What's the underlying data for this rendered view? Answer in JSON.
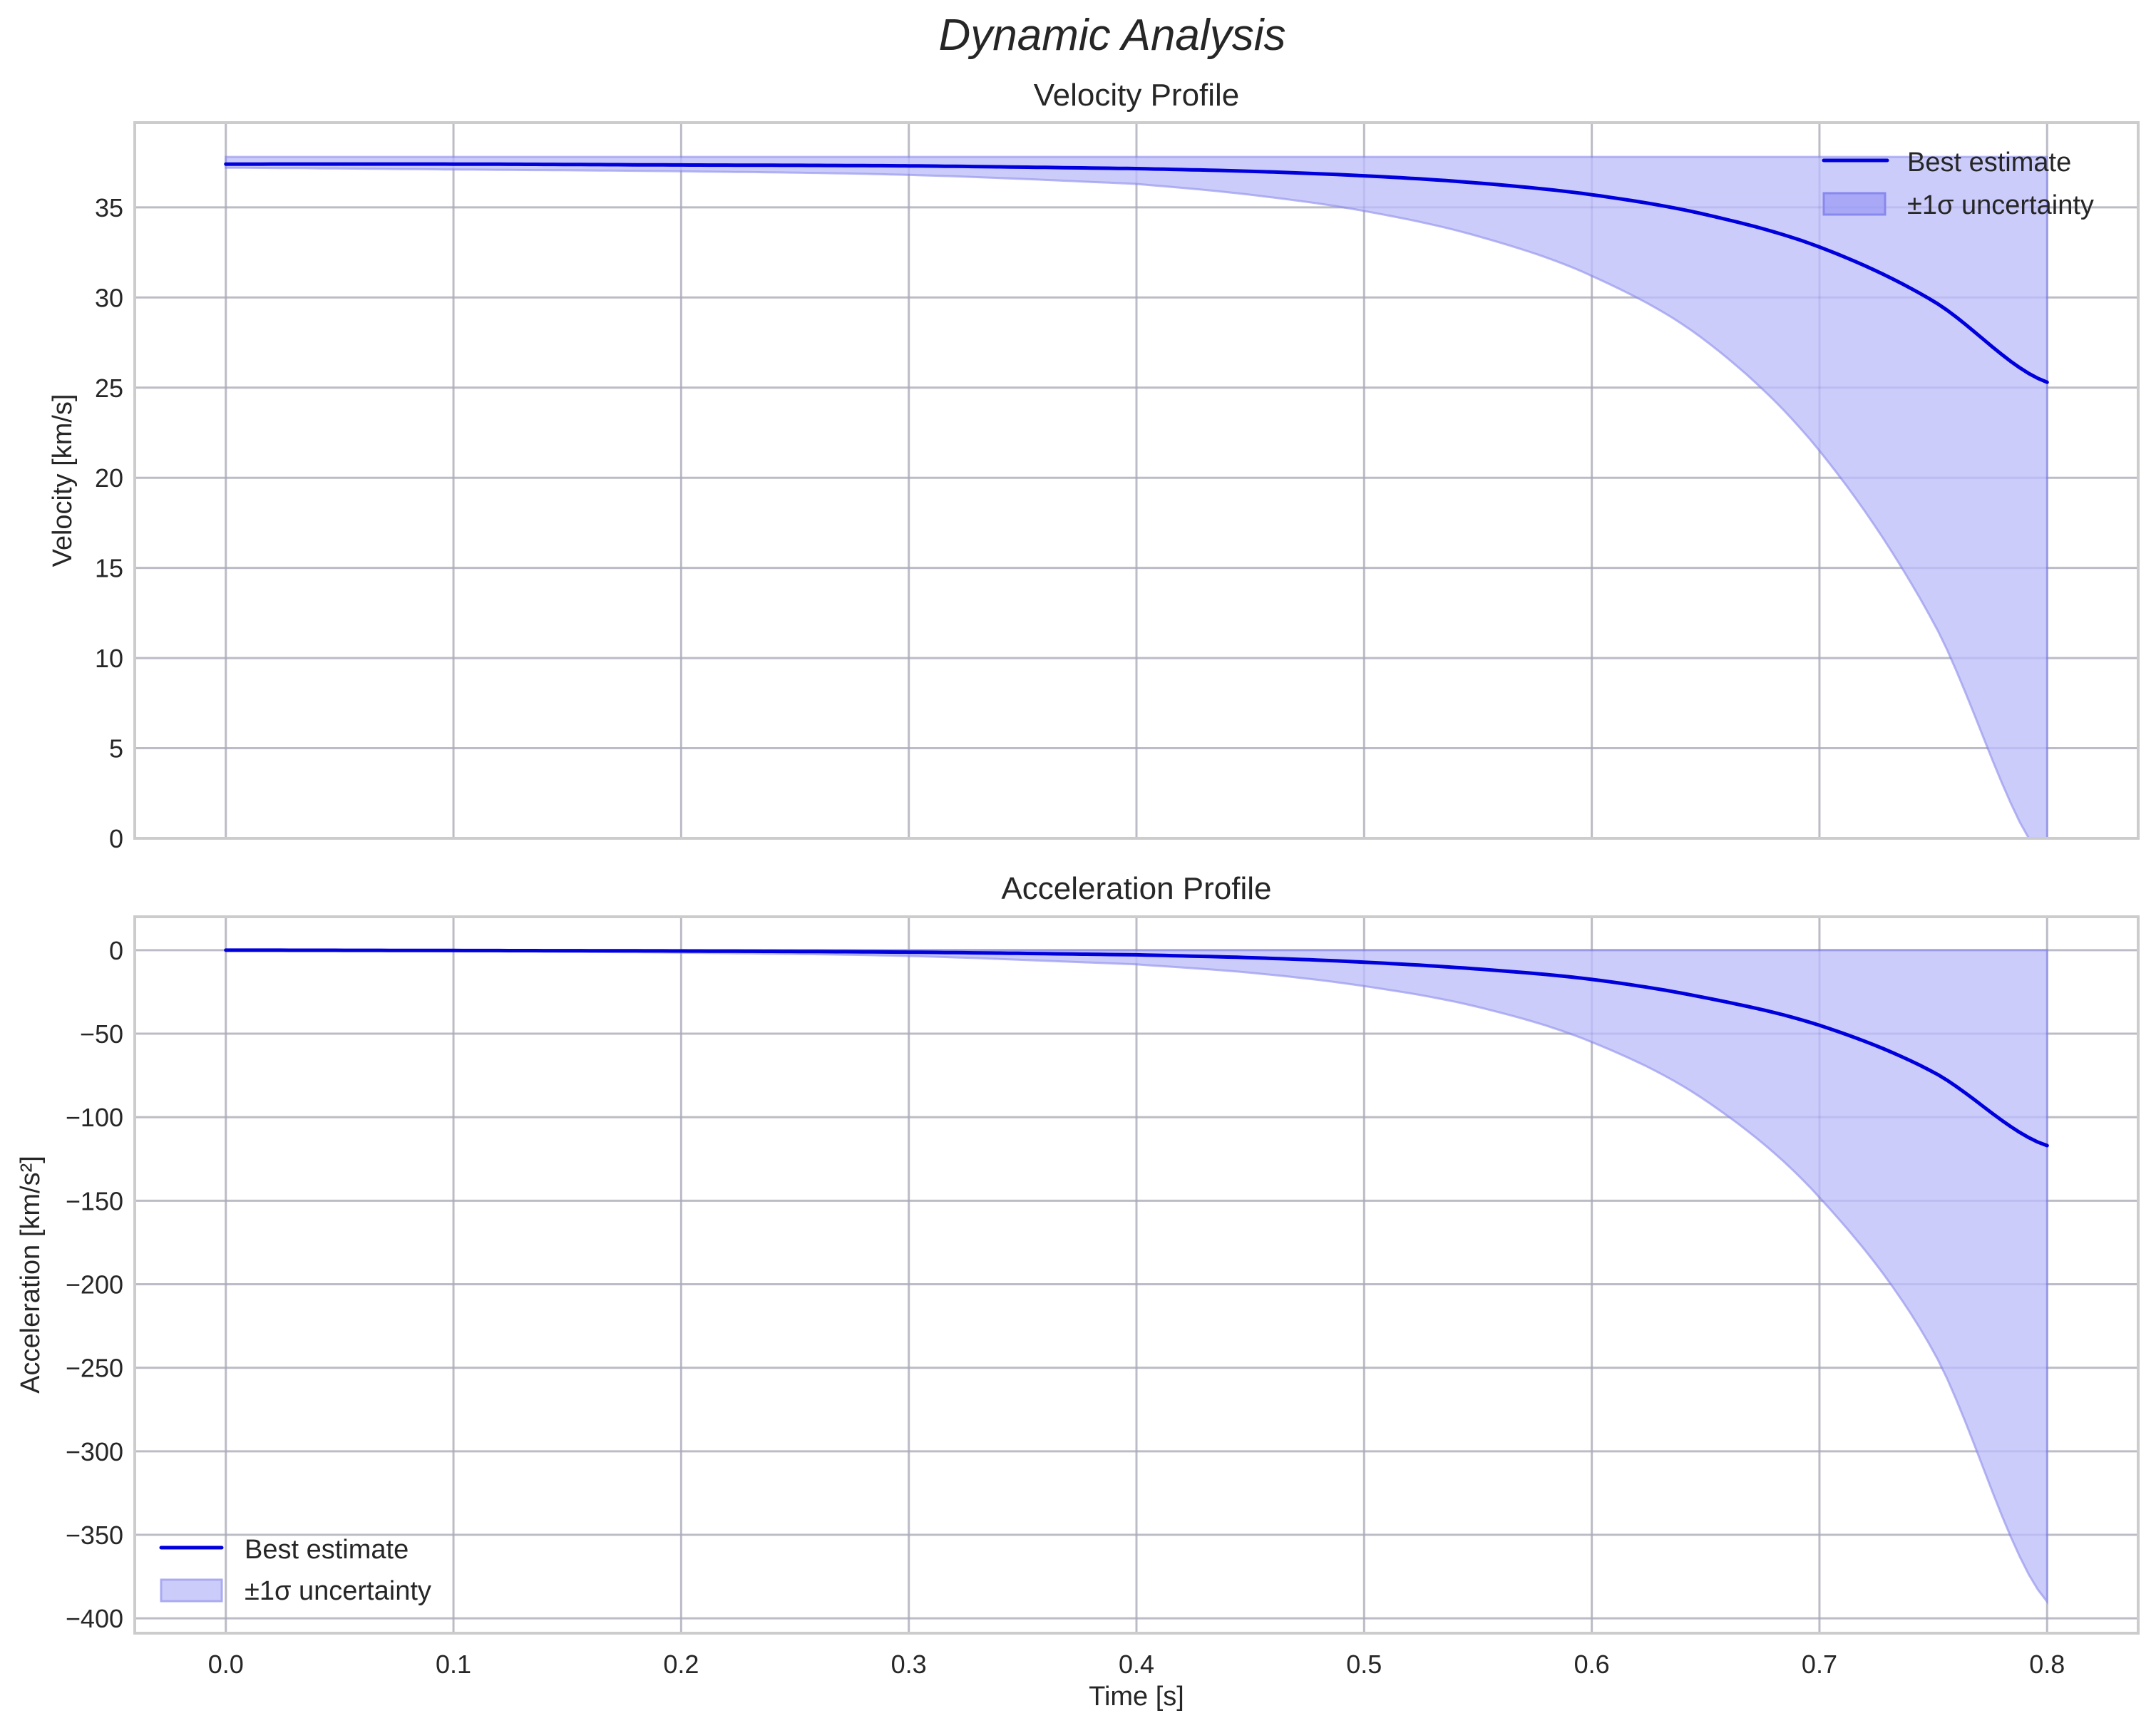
{
  "figure": {
    "suptitle": "Dynamic Analysis"
  },
  "chart_data": [
    {
      "type": "line",
      "title": "Velocity Profile",
      "xlabel": "",
      "ylabel": "Velocity [km/s]",
      "xlim": [
        -0.04,
        0.84
      ],
      "ylim": [
        0,
        39.7
      ],
      "xticks": [
        0.0,
        0.1,
        0.2,
        0.3,
        0.4,
        0.5,
        0.6,
        0.7,
        0.8
      ],
      "xtick_labels_visible": false,
      "yticks": [
        0,
        5,
        10,
        15,
        20,
        25,
        30,
        35
      ],
      "ytick_labels": [
        "0",
        "5",
        "10",
        "15",
        "20",
        "25",
        "30",
        "35"
      ],
      "grid": true,
      "legend_position": "upper right",
      "legend": [
        "Best estimate",
        "±1σ uncertainty"
      ],
      "x": [
        0.0,
        0.1,
        0.2,
        0.3,
        0.4,
        0.45,
        0.5,
        0.55,
        0.6,
        0.65,
        0.7,
        0.75,
        0.8
      ],
      "series": [
        {
          "name": "Best estimate",
          "kind": "line",
          "color": "#0000dd",
          "values": [
            37.4,
            37.4,
            37.35,
            37.3,
            37.15,
            37.0,
            36.75,
            36.35,
            35.7,
            34.6,
            32.8,
            29.8,
            25.3
          ]
        },
        {
          "name": "±1σ uncertainty (upper)",
          "kind": "band-upper",
          "color": "#0000ff",
          "values": [
            37.8,
            37.8,
            37.8,
            37.8,
            37.8,
            37.8,
            37.8,
            37.8,
            37.8,
            37.8,
            37.8,
            37.8,
            37.8
          ]
        },
        {
          "name": "±1σ uncertainty (lower)",
          "kind": "band-lower",
          "color": "#0000ff",
          "values": [
            37.2,
            37.1,
            37.0,
            36.8,
            36.3,
            35.7,
            34.8,
            33.4,
            31.2,
            27.6,
            21.5,
            12.0,
            -1.5
          ]
        }
      ]
    },
    {
      "type": "line",
      "title": "Acceleration Profile",
      "xlabel": "Time [s]",
      "ylabel": "Acceleration [km/s²]",
      "xlim": [
        -0.04,
        0.84
      ],
      "ylim": [
        -408.9,
        20
      ],
      "xticks": [
        0.0,
        0.1,
        0.2,
        0.3,
        0.4,
        0.5,
        0.6,
        0.7,
        0.8
      ],
      "xtick_labels": [
        "0.0",
        "0.1",
        "0.2",
        "0.3",
        "0.4",
        "0.5",
        "0.6",
        "0.7",
        "0.8"
      ],
      "yticks": [
        0,
        -50,
        -100,
        -150,
        -200,
        -250,
        -300,
        -350,
        -400
      ],
      "ytick_labels": [
        "0",
        "−50",
        "−100",
        "−150",
        "−200",
        "−250",
        "−300",
        "−350",
        "−400"
      ],
      "grid": true,
      "legend_position": "lower left",
      "legend": [
        "Best estimate",
        "±1σ uncertainty"
      ],
      "x": [
        0.0,
        0.1,
        0.2,
        0.3,
        0.4,
        0.45,
        0.5,
        0.55,
        0.6,
        0.65,
        0.7,
        0.75,
        0.8
      ],
      "series": [
        {
          "name": "Best estimate",
          "kind": "line",
          "color": "#0000dd",
          "values": [
            0,
            -0.2,
            -0.5,
            -1.2,
            -2.8,
            -4.5,
            -7.2,
            -11.3,
            -17.5,
            -28.5,
            -45.0,
            -73.0,
            -117.0
          ]
        },
        {
          "name": "±1σ uncertainty (upper)",
          "kind": "band-upper",
          "color": "#0000ff",
          "values": [
            0,
            0,
            0,
            0,
            0,
            0,
            0,
            0,
            0,
            0,
            0,
            0,
            0
          ]
        },
        {
          "name": "±1σ uncertainty (lower)",
          "kind": "band-lower",
          "color": "#0000ff",
          "values": [
            0,
            -0.6,
            -1.5,
            -3.5,
            -8.5,
            -13.5,
            -21.5,
            -34.0,
            -55.0,
            -90.0,
            -148.0,
            -240.0,
            -390.0
          ]
        }
      ]
    }
  ],
  "panels": {
    "top": {
      "title": "Velocity Profile",
      "ylabel": "Velocity [km/s]",
      "legend": {
        "line_label": "Best estimate",
        "band_label": "±1σ uncertainty"
      }
    },
    "bottom": {
      "title": "Acceleration Profile",
      "ylabel": "Acceleration [km/s²]",
      "xlabel": "Time [s]",
      "legend": {
        "line_label": "Best estimate",
        "band_label": "±1σ uncertainty"
      }
    }
  },
  "colors": {
    "line": "#0000dd",
    "band_fill": "#ccccfb",
    "band_edge": "#9999ee",
    "grid": "#cccccc",
    "spine": "#cccccc",
    "text": "#262626"
  }
}
